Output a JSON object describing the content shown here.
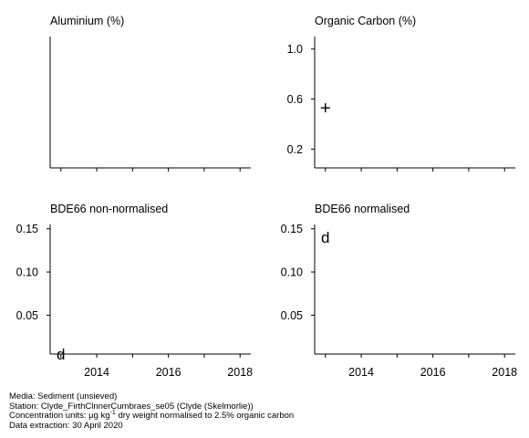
{
  "chart_data": [
    {
      "type": "scatter",
      "title": "Aluminium (%)",
      "xlim": [
        2012.7,
        2018.3
      ],
      "xticks": [
        2013,
        2014,
        2015,
        2016,
        2017,
        2018
      ],
      "xticklabels": [],
      "yticks": [],
      "points": []
    },
    {
      "type": "scatter",
      "title": "Organic Carbon (%)",
      "xlim": [
        2012.7,
        2018.3
      ],
      "ylim": [
        0.05,
        1.1
      ],
      "xticks": [
        2013,
        2014,
        2015,
        2016,
        2017,
        2018
      ],
      "xticklabels": [],
      "yticks": [
        0.2,
        0.6,
        1.0
      ],
      "yticklabels": [
        "0.2",
        "0.6",
        "1.0"
      ],
      "points": [
        {
          "x": 2013.0,
          "y": 0.53,
          "marker": "+"
        }
      ]
    },
    {
      "type": "scatter",
      "title": "BDE66 non-normalised",
      "xlim": [
        2012.7,
        2018.3
      ],
      "ylim": [
        0.005,
        0.155
      ],
      "xticks": [
        2013,
        2014,
        2015,
        2016,
        2017,
        2018
      ],
      "xticklabels": [
        "",
        "2014",
        "",
        "2016",
        "",
        "2018"
      ],
      "yticks": [
        0.05,
        0.1,
        0.15
      ],
      "yticklabels": [
        "0.05",
        "0.10",
        "0.15"
      ],
      "points": [
        {
          "x": 2013.0,
          "y": 0.005,
          "marker": "d"
        }
      ]
    },
    {
      "type": "scatter",
      "title": "BDE66 normalised",
      "xlim": [
        2012.7,
        2018.3
      ],
      "ylim": [
        0.005,
        0.155
      ],
      "xticks": [
        2013,
        2014,
        2015,
        2016,
        2017,
        2018
      ],
      "xticklabels": [
        "",
        "2014",
        "",
        "2016",
        "",
        "2018"
      ],
      "yticks": [
        0.05,
        0.1,
        0.15
      ],
      "yticklabels": [
        "0.05",
        "0.10",
        "0.15"
      ],
      "points": [
        {
          "x": 2013.0,
          "y": 0.14,
          "marker": "d"
        }
      ]
    }
  ],
  "footer": {
    "media": "Media: Sediment (unsieved)",
    "station": "Station: Clyde_FirthClnnerCumbraes_se05 (Clyde (Skelmorlie))",
    "conc_prefix": "Concentration units:  µg kg",
    "conc_sup": "-1",
    "conc_suffix": " dry weight normalised to 2.5% organic carbon",
    "extraction": "Data extraction: 30 April 2020"
  }
}
